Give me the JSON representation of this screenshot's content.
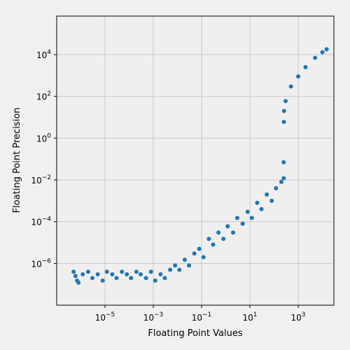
{
  "chart_data": {
    "type": "scatter",
    "title": "",
    "xlabel": "Floating Point Values",
    "ylabel": "Floating Point Precision",
    "x_scale": "log",
    "y_scale": "log",
    "xlim": [
      1e-07,
      30000
    ],
    "ylim": [
      1e-08,
      700000
    ],
    "x_ticks": [
      {
        "value": 1e-05,
        "base": "10",
        "exp": "−5"
      },
      {
        "value": 0.001,
        "base": "10",
        "exp": "−3"
      },
      {
        "value": 0.1,
        "base": "10",
        "exp": "−1"
      },
      {
        "value": 10,
        "base": "10",
        "exp": "1"
      },
      {
        "value": 1000,
        "base": "10",
        "exp": "3"
      }
    ],
    "y_ticks": [
      {
        "value": 1e-06,
        "base": "10",
        "exp": "−6"
      },
      {
        "value": 0.0001,
        "base": "10",
        "exp": "−4"
      },
      {
        "value": 0.01,
        "base": "10",
        "exp": "−2"
      },
      {
        "value": 1,
        "base": "10",
        "exp": "0"
      },
      {
        "value": 100,
        "base": "10",
        "exp": "2"
      },
      {
        "value": 10000,
        "base": "10",
        "exp": "4"
      }
    ],
    "grid": true,
    "legend": "none",
    "marker_color": "#1f77b4",
    "series": [
      {
        "values": [
          [
            5e-07,
            4e-07
          ],
          [
            6e-07,
            2.5e-07
          ],
          [
            7e-07,
            1.5e-07
          ],
          [
            8e-07,
            1.2e-07
          ],
          [
            1.2e-06,
            3e-07
          ],
          [
            2e-06,
            4e-07
          ],
          [
            3e-06,
            2e-07
          ],
          [
            5e-06,
            3e-07
          ],
          [
            8e-06,
            1.5e-07
          ],
          [
            1.2e-05,
            4e-07
          ],
          [
            2e-05,
            3e-07
          ],
          [
            3e-05,
            2e-07
          ],
          [
            5e-05,
            4e-07
          ],
          [
            8e-05,
            3e-07
          ],
          [
            0.00012,
            2e-07
          ],
          [
            0.0002,
            4e-07
          ],
          [
            0.0003,
            3e-07
          ],
          [
            0.0005,
            2e-07
          ],
          [
            0.0008,
            4e-07
          ],
          [
            0.0012,
            1.5e-07
          ],
          [
            0.002,
            3e-07
          ],
          [
            0.003,
            2e-07
          ],
          [
            0.005,
            5e-07
          ],
          [
            0.008,
            8e-07
          ],
          [
            0.012,
            5e-07
          ],
          [
            0.02,
            1.5e-06
          ],
          [
            0.03,
            8e-07
          ],
          [
            0.05,
            3e-06
          ],
          [
            0.08,
            5e-06
          ],
          [
            0.12,
            2e-06
          ],
          [
            0.2,
            1.5e-05
          ],
          [
            0.3,
            8e-06
          ],
          [
            0.5,
            3e-05
          ],
          [
            0.8,
            1.5e-05
          ],
          [
            1.2,
            6e-05
          ],
          [
            2,
            3e-05
          ],
          [
            3,
            0.00015
          ],
          [
            5,
            8e-05
          ],
          [
            8,
            0.0003
          ],
          [
            12,
            0.00015
          ],
          [
            20,
            0.0008
          ],
          [
            30,
            0.0004
          ],
          [
            50,
            0.002
          ],
          [
            80,
            0.001
          ],
          [
            120,
            0.004
          ],
          [
            200,
            0.008
          ],
          [
            250,
            0.012
          ],
          [
            250,
            0.07
          ],
          [
            256,
            6
          ],
          [
            260,
            20
          ],
          [
            300,
            60
          ],
          [
            500,
            300
          ],
          [
            1000,
            900
          ],
          [
            2000,
            2500
          ],
          [
            5000,
            7000
          ],
          [
            10000,
            13000
          ],
          [
            15000,
            18000
          ]
        ]
      }
    ]
  }
}
